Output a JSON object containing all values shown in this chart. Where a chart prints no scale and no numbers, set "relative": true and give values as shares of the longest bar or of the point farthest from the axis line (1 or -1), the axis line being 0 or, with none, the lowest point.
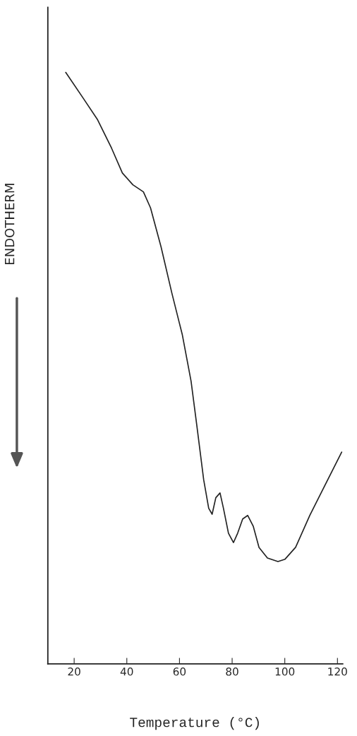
{
  "chart_data": {
    "type": "line",
    "relative": true,
    "xlabel": "Temperature (°C)",
    "ylabel": "ENDOTHERM",
    "x": [
      16.8,
      23.5,
      28.9,
      34.2,
      38.3,
      42.3,
      46.3,
      49,
      53,
      57.1,
      61.1,
      64.4,
      66.5,
      69.2,
      71.1,
      72.4,
      73.8,
      75.4,
      76.7,
      78.6,
      80.5,
      82.1,
      84,
      85.9,
      88,
      90.2,
      93.4,
      97.4,
      100.1,
      104.1,
      109.5,
      114.9,
      121.6
    ],
    "series": [
      {
        "color": "#222222",
        "values": [
          1,
          0.956,
          0.92,
          0.872,
          0.83,
          0.81,
          0.798,
          0.771,
          0.705,
          0.627,
          0.556,
          0.478,
          0.406,
          0.311,
          0.263,
          0.253,
          0.281,
          0.289,
          0.263,
          0.221,
          0.205,
          0.221,
          0.245,
          0.251,
          0.233,
          0.197,
          0.179,
          0.173,
          0.177,
          0.197,
          0.251,
          0.299,
          0.358
        ]
      }
    ],
    "xlim": [
      10,
      122
    ],
    "xticks": [
      20,
      40,
      60,
      80,
      100,
      120
    ],
    "grid": false,
    "legend": false
  }
}
